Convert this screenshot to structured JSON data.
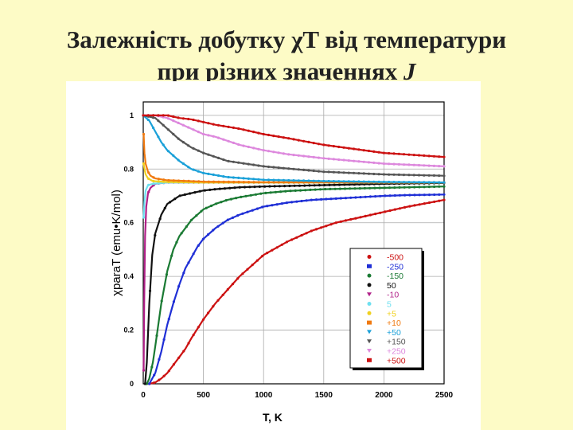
{
  "title": {
    "line1": "Залежність добутку χT від температури",
    "line2_prefix": "при різних значеннях ",
    "line2_var": "J"
  },
  "chart_data": {
    "type": "line",
    "xlabel": "T, K",
    "ylabel": "χparaT (emu•K/mol)",
    "xlim": [
      0,
      2500
    ],
    "ylim": [
      0,
      1.05
    ],
    "xticks": [
      "0",
      "500",
      "1000",
      "1500",
      "2000",
      "2500"
    ],
    "yticks": [
      "0",
      "0.2",
      "0.4",
      "0.6",
      "0.8",
      "1"
    ],
    "grid": true,
    "legend_position": "bottom-right",
    "series": [
      {
        "name": "-500",
        "color": "#cc1111",
        "marker": "circle",
        "x": [
          50,
          100,
          150,
          200,
          250,
          300,
          350,
          400,
          500,
          600,
          700,
          800,
          900,
          1000,
          1200,
          1400,
          1600,
          1800,
          2000,
          2200,
          2500
        ],
        "y": [
          0.0,
          0.005,
          0.02,
          0.04,
          0.07,
          0.1,
          0.13,
          0.17,
          0.24,
          0.3,
          0.35,
          0.4,
          0.44,
          0.48,
          0.53,
          0.57,
          0.6,
          0.62,
          0.64,
          0.66,
          0.685
        ]
      },
      {
        "name": "-250",
        "color": "#1f2fd6",
        "marker": "square",
        "x": [
          50,
          100,
          150,
          200,
          250,
          300,
          350,
          400,
          450,
          500,
          600,
          700,
          800,
          900,
          1000,
          1200,
          1400,
          1600,
          1800,
          2000,
          2200,
          2500
        ],
        "y": [
          0.0,
          0.04,
          0.12,
          0.22,
          0.3,
          0.37,
          0.43,
          0.47,
          0.51,
          0.54,
          0.58,
          0.61,
          0.63,
          0.645,
          0.66,
          0.675,
          0.685,
          0.69,
          0.695,
          0.7,
          0.703,
          0.705
        ]
      },
      {
        "name": "-150",
        "color": "#1a7a33",
        "marker": "circle",
        "x": [
          30,
          50,
          80,
          100,
          150,
          200,
          250,
          300,
          400,
          500,
          600,
          700,
          800,
          1000,
          1200,
          1500,
          2000,
          2500
        ],
        "y": [
          0.0,
          0.02,
          0.08,
          0.14,
          0.3,
          0.42,
          0.5,
          0.55,
          0.61,
          0.65,
          0.67,
          0.685,
          0.695,
          0.71,
          0.718,
          0.725,
          0.73,
          0.735
        ]
      },
      {
        "name": "50",
        "color": "#111111",
        "marker": "circle",
        "x": [
          15,
          30,
          50,
          75,
          100,
          150,
          200,
          300,
          400,
          500,
          600,
          800,
          1000,
          1500,
          2000,
          2500
        ],
        "y": [
          0.0,
          0.08,
          0.3,
          0.48,
          0.56,
          0.63,
          0.67,
          0.7,
          0.71,
          0.72,
          0.725,
          0.732,
          0.735,
          0.74,
          0.745,
          0.748
        ]
      },
      {
        "name": "-10",
        "color": "#b02088",
        "marker": "triangle",
        "x": [
          3,
          8,
          15,
          25,
          40,
          60,
          100,
          200,
          500,
          1000,
          2500
        ],
        "y": [
          0.05,
          0.3,
          0.55,
          0.66,
          0.71,
          0.73,
          0.745,
          0.75,
          0.75,
          0.75,
          0.75
        ]
      },
      {
        "name": "5",
        "color": "#6ee0f0",
        "marker": "circle",
        "x": [
          3,
          10,
          20,
          40,
          80,
          200,
          500,
          1000,
          2500
        ],
        "y": [
          0.62,
          0.68,
          0.72,
          0.74,
          0.745,
          0.75,
          0.75,
          0.75,
          0.75
        ]
      },
      {
        "name": "+5",
        "color": "#f0d020",
        "marker": "circle",
        "x": [
          3,
          10,
          20,
          40,
          80,
          200,
          500,
          1000,
          2500
        ],
        "y": [
          0.82,
          0.8,
          0.78,
          0.765,
          0.755,
          0.752,
          0.75,
          0.75,
          0.75
        ]
      },
      {
        "name": "+10",
        "color": "#f07a10",
        "marker": "square",
        "x": [
          3,
          10,
          20,
          40,
          60,
          100,
          200,
          500,
          1000,
          2500
        ],
        "y": [
          0.93,
          0.86,
          0.82,
          0.79,
          0.775,
          0.765,
          0.758,
          0.753,
          0.751,
          0.75
        ]
      },
      {
        "name": "+50",
        "color": "#1aa0d8",
        "marker": "triangle",
        "x": [
          0,
          50,
          100,
          150,
          200,
          300,
          400,
          500,
          700,
          1000,
          1500,
          2000,
          2500
        ],
        "y": [
          1.0,
          0.98,
          0.94,
          0.9,
          0.87,
          0.83,
          0.8,
          0.785,
          0.77,
          0.76,
          0.755,
          0.752,
          0.75
        ]
      },
      {
        "name": "+150",
        "color": "#555555",
        "marker": "triangle",
        "x": [
          0,
          100,
          200,
          300,
          400,
          500,
          700,
          1000,
          1500,
          2000,
          2500
        ],
        "y": [
          1.0,
          0.99,
          0.95,
          0.91,
          0.88,
          0.86,
          0.83,
          0.81,
          0.79,
          0.78,
          0.775
        ]
      },
      {
        "name": "+250",
        "color": "#dd88dd",
        "marker": "triangle",
        "x": [
          0,
          100,
          200,
          300,
          400,
          500,
          600,
          800,
          1000,
          1200,
          1500,
          2000,
          2500
        ],
        "y": [
          1.0,
          1.0,
          0.99,
          0.97,
          0.95,
          0.93,
          0.92,
          0.89,
          0.87,
          0.855,
          0.84,
          0.82,
          0.81
        ]
      },
      {
        "name": "+500",
        "color": "#cc1111",
        "marker": "square",
        "x": [
          0,
          100,
          200,
          300,
          400,
          500,
          600,
          800,
          1000,
          1200,
          1500,
          2000,
          2500
        ],
        "y": [
          1.0,
          1.0,
          1.0,
          0.99,
          0.985,
          0.975,
          0.965,
          0.95,
          0.93,
          0.915,
          0.89,
          0.86,
          0.845
        ]
      }
    ]
  }
}
